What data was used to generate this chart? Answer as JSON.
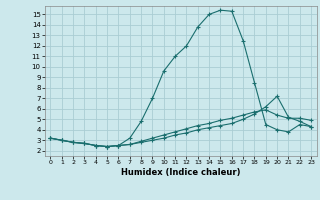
{
  "title": "",
  "xlabel": "Humidex (Indice chaleur)",
  "background_color": "#cce8ec",
  "grid_color": "#aacdd4",
  "line_color": "#1a6e6e",
  "xlim": [
    -0.5,
    23.5
  ],
  "ylim": [
    1.5,
    15.8
  ],
  "x_ticks": [
    0,
    1,
    2,
    3,
    4,
    5,
    6,
    7,
    8,
    9,
    10,
    11,
    12,
    13,
    14,
    15,
    16,
    17,
    18,
    19,
    20,
    21,
    22,
    23
  ],
  "y_ticks": [
    2,
    3,
    4,
    5,
    6,
    7,
    8,
    9,
    10,
    11,
    12,
    13,
    14,
    15
  ],
  "series1_x": [
    0,
    1,
    2,
    3,
    4,
    5,
    6,
    7,
    8,
    9,
    10,
    11,
    12,
    13,
    14,
    15,
    16,
    17,
    18,
    19,
    20,
    21,
    22,
    23
  ],
  "series1_y": [
    3.2,
    3.0,
    2.8,
    2.7,
    2.5,
    2.4,
    2.5,
    3.2,
    4.8,
    7.0,
    9.6,
    11.0,
    12.0,
    13.8,
    15.0,
    15.4,
    15.3,
    12.5,
    8.5,
    4.5,
    4.0,
    3.8,
    4.5,
    4.3
  ],
  "series2_x": [
    0,
    1,
    2,
    3,
    4,
    5,
    6,
    7,
    8,
    9,
    10,
    11,
    12,
    13,
    14,
    15,
    16,
    17,
    18,
    19,
    20,
    21,
    22,
    23
  ],
  "series2_y": [
    3.2,
    3.0,
    2.8,
    2.7,
    2.5,
    2.4,
    2.5,
    2.6,
    2.8,
    3.0,
    3.2,
    3.5,
    3.7,
    4.0,
    4.2,
    4.4,
    4.6,
    5.0,
    5.5,
    6.2,
    7.2,
    5.2,
    4.8,
    4.3
  ],
  "series3_x": [
    0,
    1,
    2,
    3,
    4,
    5,
    6,
    7,
    8,
    9,
    10,
    11,
    12,
    13,
    14,
    15,
    16,
    17,
    18,
    19,
    20,
    21,
    22,
    23
  ],
  "series3_y": [
    3.2,
    3.0,
    2.8,
    2.7,
    2.5,
    2.4,
    2.5,
    2.6,
    2.9,
    3.2,
    3.5,
    3.8,
    4.1,
    4.4,
    4.6,
    4.9,
    5.1,
    5.4,
    5.7,
    5.9,
    5.4,
    5.1,
    5.1,
    4.9
  ]
}
